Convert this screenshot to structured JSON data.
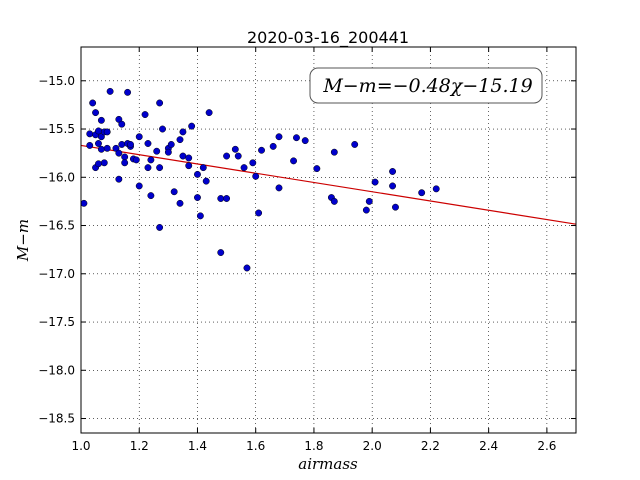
{
  "chart_data": {
    "type": "scatter",
    "title": "2020-03-16_200441",
    "xlabel": "airmass",
    "ylabel": "M−m",
    "xlim": [
      1.0,
      2.7
    ],
    "ylim": [
      -18.65,
      -14.65
    ],
    "y_inverted": true,
    "grid": true,
    "x_ticks": [
      "1.0",
      "1.2",
      "1.4",
      "1.6",
      "1.8",
      "2.0",
      "2.2",
      "2.4",
      "2.6"
    ],
    "y_ticks": [
      "−15.0",
      "−15.5",
      "−16.0",
      "−16.5",
      "−17.0",
      "−17.5",
      "−18.0",
      "−18.5"
    ],
    "annotation": "M−m=−0.48χ−15.19",
    "marker_color": "#0000cc",
    "fit_color": "#cc0000",
    "fit": {
      "slope": -0.48,
      "intercept": -15.19
    },
    "points": [
      [
        1.01,
        -16.27
      ],
      [
        1.03,
        -15.55
      ],
      [
        1.03,
        -15.67
      ],
      [
        1.04,
        -15.23
      ],
      [
        1.05,
        -15.33
      ],
      [
        1.05,
        -15.56
      ],
      [
        1.05,
        -15.9
      ],
      [
        1.06,
        -15.65
      ],
      [
        1.06,
        -15.52
      ],
      [
        1.06,
        -15.86
      ],
      [
        1.07,
        -15.71
      ],
      [
        1.07,
        -15.41
      ],
      [
        1.07,
        -15.58
      ],
      [
        1.08,
        -15.53
      ],
      [
        1.08,
        -15.85
      ],
      [
        1.09,
        -15.7
      ],
      [
        1.09,
        -15.53
      ],
      [
        1.1,
        -15.11
      ],
      [
        1.12,
        -15.7
      ],
      [
        1.13,
        -16.02
      ],
      [
        1.13,
        -15.75
      ],
      [
        1.13,
        -15.4
      ],
      [
        1.14,
        -15.45
      ],
      [
        1.14,
        -15.66
      ],
      [
        1.15,
        -15.79
      ],
      [
        1.15,
        -15.85
      ],
      [
        1.16,
        -15.65
      ],
      [
        1.16,
        -15.12
      ],
      [
        1.17,
        -15.68
      ],
      [
        1.17,
        -15.66
      ],
      [
        1.18,
        -15.81
      ],
      [
        1.19,
        -15.82
      ],
      [
        1.2,
        -15.58
      ],
      [
        1.2,
        -16.09
      ],
      [
        1.22,
        -15.35
      ],
      [
        1.23,
        -15.9
      ],
      [
        1.23,
        -15.65
      ],
      [
        1.24,
        -15.82
      ],
      [
        1.24,
        -16.19
      ],
      [
        1.26,
        -15.73
      ],
      [
        1.27,
        -15.23
      ],
      [
        1.27,
        -15.9
      ],
      [
        1.27,
        -16.52
      ],
      [
        1.28,
        -15.5
      ],
      [
        1.3,
        -15.7
      ],
      [
        1.3,
        -15.74
      ],
      [
        1.31,
        -15.66
      ],
      [
        1.32,
        -16.15
      ],
      [
        1.34,
        -16.27
      ],
      [
        1.34,
        -15.61
      ],
      [
        1.35,
        -15.53
      ],
      [
        1.35,
        -15.78
      ],
      [
        1.37,
        -15.88
      ],
      [
        1.37,
        -15.8
      ],
      [
        1.38,
        -15.47
      ],
      [
        1.4,
        -15.97
      ],
      [
        1.4,
        -16.21
      ],
      [
        1.41,
        -16.4
      ],
      [
        1.42,
        -15.9
      ],
      [
        1.43,
        -16.04
      ],
      [
        1.44,
        -15.33
      ],
      [
        1.48,
        -16.78
      ],
      [
        1.48,
        -16.22
      ],
      [
        1.5,
        -15.78
      ],
      [
        1.5,
        -16.22
      ],
      [
        1.53,
        -15.71
      ],
      [
        1.54,
        -15.78
      ],
      [
        1.56,
        -15.9
      ],
      [
        1.57,
        -16.94
      ],
      [
        1.59,
        -15.85
      ],
      [
        1.6,
        -15.99
      ],
      [
        1.61,
        -16.37
      ],
      [
        1.62,
        -15.72
      ],
      [
        1.66,
        -15.68
      ],
      [
        1.68,
        -15.58
      ],
      [
        1.68,
        -16.11
      ],
      [
        1.73,
        -15.83
      ],
      [
        1.74,
        -15.59
      ],
      [
        1.77,
        -15.62
      ],
      [
        1.81,
        -15.91
      ],
      [
        1.86,
        -16.21
      ],
      [
        1.87,
        -16.25
      ],
      [
        1.87,
        -15.74
      ],
      [
        1.94,
        -15.66
      ],
      [
        1.98,
        -16.34
      ],
      [
        1.99,
        -16.25
      ],
      [
        2.01,
        -16.05
      ],
      [
        2.07,
        -16.09
      ],
      [
        2.07,
        -15.94
      ],
      [
        2.08,
        -16.31
      ],
      [
        2.17,
        -16.16
      ],
      [
        2.22,
        -16.12
      ]
    ]
  }
}
